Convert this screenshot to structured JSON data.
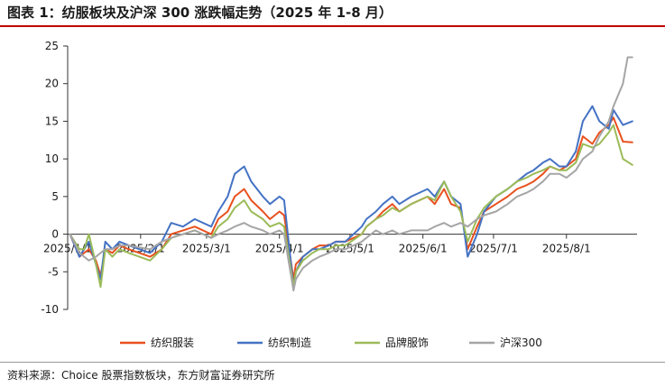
{
  "header": {
    "title": "图表 1：纺服板块及沪深 300 涨跌幅走势（2025 年 1-8 月）"
  },
  "footer": {
    "source": "资料来源：Choice 股票指数板块，东方财富证券研究所"
  },
  "colors": {
    "accent": "#c00000"
  },
  "chart_data": {
    "type": "line",
    "title": "",
    "xlabel": "",
    "ylabel": "",
    "ylim": [
      -10,
      25
    ],
    "yticks": [
      -10,
      -5,
      0,
      5,
      10,
      15,
      20,
      25
    ],
    "grid": false,
    "legend": "bottom",
    "date_axis": {
      "start": "2025-01-01",
      "end": "2025-08-31"
    },
    "xticks": [
      {
        "date": "2025-01-01",
        "label": "2025/1/1"
      },
      {
        "date": "2025-02-01",
        "label": "2025/2/1"
      },
      {
        "date": "2025-03-01",
        "label": "2025/3/1"
      },
      {
        "date": "2025-04-01",
        "label": "2025/4/1"
      },
      {
        "date": "2025-05-01",
        "label": "2025/5/1"
      },
      {
        "date": "2025-06-01",
        "label": "2025/6/1"
      },
      {
        "date": "2025-07-01",
        "label": "2025/7/1"
      },
      {
        "date": "2025-08-01",
        "label": "2025/8/1"
      }
    ],
    "series": [
      {
        "name": "纺织服装",
        "color": "#e8501e",
        "points": [
          [
            "2025-01-02",
            0
          ],
          [
            "2025-01-06",
            -3
          ],
          [
            "2025-01-08",
            -2.5
          ],
          [
            "2025-01-10",
            -2
          ],
          [
            "2025-01-13",
            -3.5
          ],
          [
            "2025-01-15",
            -5.5
          ],
          [
            "2025-01-17",
            -2
          ],
          [
            "2025-01-20",
            -2.5
          ],
          [
            "2025-01-23",
            -1.5
          ],
          [
            "2025-01-27",
            -2
          ],
          [
            "2025-02-05",
            -3
          ],
          [
            "2025-02-10",
            -2
          ],
          [
            "2025-02-14",
            0
          ],
          [
            "2025-02-19",
            0.5
          ],
          [
            "2025-02-24",
            1
          ],
          [
            "2025-03-03",
            0
          ],
          [
            "2025-03-06",
            2
          ],
          [
            "2025-03-10",
            3
          ],
          [
            "2025-03-13",
            5
          ],
          [
            "2025-03-17",
            6
          ],
          [
            "2025-03-20",
            4.5
          ],
          [
            "2025-03-25",
            3
          ],
          [
            "2025-03-28",
            2
          ],
          [
            "2025-04-01",
            3
          ],
          [
            "2025-04-03",
            2.5
          ],
          [
            "2025-04-07",
            -6
          ],
          [
            "2025-04-08",
            -4
          ],
          [
            "2025-04-11",
            -3
          ],
          [
            "2025-04-15",
            -2
          ],
          [
            "2025-04-18",
            -1.5
          ],
          [
            "2025-04-22",
            -1.5
          ],
          [
            "2025-04-25",
            -1
          ],
          [
            "2025-04-29",
            -1
          ],
          [
            "2025-05-06",
            0
          ],
          [
            "2025-05-08",
            1
          ],
          [
            "2025-05-12",
            2
          ],
          [
            "2025-05-15",
            3
          ],
          [
            "2025-05-19",
            4
          ],
          [
            "2025-05-22",
            3
          ],
          [
            "2025-05-27",
            4
          ],
          [
            "2025-06-03",
            5
          ],
          [
            "2025-06-06",
            4
          ],
          [
            "2025-06-10",
            6
          ],
          [
            "2025-06-13",
            4
          ],
          [
            "2025-06-17",
            3.5
          ],
          [
            "2025-06-20",
            -2
          ],
          [
            "2025-06-24",
            1
          ],
          [
            "2025-06-27",
            3
          ],
          [
            "2025-07-02",
            4
          ],
          [
            "2025-07-07",
            5
          ],
          [
            "2025-07-11",
            6
          ],
          [
            "2025-07-15",
            6.5
          ],
          [
            "2025-07-18",
            7
          ],
          [
            "2025-07-22",
            8
          ],
          [
            "2025-07-25",
            9
          ],
          [
            "2025-07-29",
            8.5
          ],
          [
            "2025-08-01",
            9
          ],
          [
            "2025-08-05",
            10
          ],
          [
            "2025-08-08",
            13
          ],
          [
            "2025-08-12",
            12
          ],
          [
            "2025-08-15",
            13.5
          ],
          [
            "2025-08-19",
            14.5
          ],
          [
            "2025-08-21",
            15.5
          ],
          [
            "2025-08-25",
            12.3
          ],
          [
            "2025-08-29",
            12.2
          ]
        ]
      },
      {
        "name": "纺织制造",
        "color": "#4472c4",
        "points": [
          [
            "2025-01-02",
            0
          ],
          [
            "2025-01-06",
            -3
          ],
          [
            "2025-01-08",
            -2
          ],
          [
            "2025-01-10",
            -1
          ],
          [
            "2025-01-13",
            -4
          ],
          [
            "2025-01-15",
            -6
          ],
          [
            "2025-01-17",
            -1
          ],
          [
            "2025-01-20",
            -2
          ],
          [
            "2025-01-23",
            -1
          ],
          [
            "2025-01-27",
            -1.5
          ],
          [
            "2025-02-05",
            -2.5
          ],
          [
            "2025-02-10",
            -1
          ],
          [
            "2025-02-14",
            1.5
          ],
          [
            "2025-02-19",
            1
          ],
          [
            "2025-02-24",
            2
          ],
          [
            "2025-03-03",
            1
          ],
          [
            "2025-03-06",
            3
          ],
          [
            "2025-03-10",
            5
          ],
          [
            "2025-03-13",
            8
          ],
          [
            "2025-03-17",
            9
          ],
          [
            "2025-03-20",
            7
          ],
          [
            "2025-03-25",
            5
          ],
          [
            "2025-03-28",
            4
          ],
          [
            "2025-04-01",
            5
          ],
          [
            "2025-04-03",
            4.5
          ],
          [
            "2025-04-07",
            -7
          ],
          [
            "2025-04-08",
            -5
          ],
          [
            "2025-04-11",
            -3
          ],
          [
            "2025-04-15",
            -2
          ],
          [
            "2025-04-18",
            -2
          ],
          [
            "2025-04-22",
            -1.5
          ],
          [
            "2025-04-25",
            -1
          ],
          [
            "2025-04-29",
            -1
          ],
          [
            "2025-05-06",
            1
          ],
          [
            "2025-05-08",
            2
          ],
          [
            "2025-05-12",
            3
          ],
          [
            "2025-05-15",
            4
          ],
          [
            "2025-05-19",
            5
          ],
          [
            "2025-05-22",
            4
          ],
          [
            "2025-05-27",
            5
          ],
          [
            "2025-06-03",
            6
          ],
          [
            "2025-06-06",
            5
          ],
          [
            "2025-06-10",
            7
          ],
          [
            "2025-06-13",
            5
          ],
          [
            "2025-06-17",
            4
          ],
          [
            "2025-06-20",
            -3
          ],
          [
            "2025-06-24",
            0
          ],
          [
            "2025-06-27",
            3
          ],
          [
            "2025-07-02",
            5
          ],
          [
            "2025-07-07",
            6
          ],
          [
            "2025-07-11",
            7
          ],
          [
            "2025-07-15",
            8
          ],
          [
            "2025-07-18",
            8.5
          ],
          [
            "2025-07-22",
            9.5
          ],
          [
            "2025-07-25",
            10
          ],
          [
            "2025-07-29",
            9
          ],
          [
            "2025-08-01",
            9
          ],
          [
            "2025-08-05",
            11
          ],
          [
            "2025-08-08",
            15
          ],
          [
            "2025-08-12",
            17
          ],
          [
            "2025-08-15",
            15
          ],
          [
            "2025-08-19",
            14
          ],
          [
            "2025-08-21",
            16.5
          ],
          [
            "2025-08-25",
            14.5
          ],
          [
            "2025-08-29",
            15
          ]
        ]
      },
      {
        "name": "品牌服饰",
        "color": "#9bbb59",
        "points": [
          [
            "2025-01-02",
            0
          ],
          [
            "2025-01-06",
            -2
          ],
          [
            "2025-01-08",
            -2
          ],
          [
            "2025-01-10",
            0
          ],
          [
            "2025-01-13",
            -4
          ],
          [
            "2025-01-15",
            -7
          ],
          [
            "2025-01-17",
            -2
          ],
          [
            "2025-01-20",
            -3
          ],
          [
            "2025-01-23",
            -2
          ],
          [
            "2025-01-27",
            -2.5
          ],
          [
            "2025-02-05",
            -3.5
          ],
          [
            "2025-02-10",
            -2
          ],
          [
            "2025-02-14",
            -0.5
          ],
          [
            "2025-02-19",
            0
          ],
          [
            "2025-02-24",
            0.5
          ],
          [
            "2025-03-03",
            -0.5
          ],
          [
            "2025-03-06",
            1
          ],
          [
            "2025-03-10",
            2
          ],
          [
            "2025-03-13",
            3.5
          ],
          [
            "2025-03-17",
            4.5
          ],
          [
            "2025-03-20",
            3
          ],
          [
            "2025-03-25",
            2
          ],
          [
            "2025-03-28",
            1
          ],
          [
            "2025-04-01",
            1.5
          ],
          [
            "2025-04-03",
            1
          ],
          [
            "2025-04-07",
            -7
          ],
          [
            "2025-04-08",
            -5
          ],
          [
            "2025-04-11",
            -3.5
          ],
          [
            "2025-04-15",
            -2.5
          ],
          [
            "2025-04-18",
            -2
          ],
          [
            "2025-04-22",
            -2
          ],
          [
            "2025-04-25",
            -1.5
          ],
          [
            "2025-04-29",
            -1.5
          ],
          [
            "2025-05-06",
            0
          ],
          [
            "2025-05-08",
            1
          ],
          [
            "2025-05-12",
            2
          ],
          [
            "2025-05-15",
            2.5
          ],
          [
            "2025-05-19",
            3.5
          ],
          [
            "2025-05-22",
            3
          ],
          [
            "2025-05-27",
            4
          ],
          [
            "2025-06-03",
            5
          ],
          [
            "2025-06-06",
            4.5
          ],
          [
            "2025-06-10",
            7
          ],
          [
            "2025-06-13",
            5
          ],
          [
            "2025-06-17",
            3
          ],
          [
            "2025-06-20",
            -1
          ],
          [
            "2025-06-24",
            2
          ],
          [
            "2025-06-27",
            3.5
          ],
          [
            "2025-07-02",
            5
          ],
          [
            "2025-07-07",
            6
          ],
          [
            "2025-07-11",
            7
          ],
          [
            "2025-07-15",
            7.5
          ],
          [
            "2025-07-18",
            8
          ],
          [
            "2025-07-22",
            8.5
          ],
          [
            "2025-07-25",
            9
          ],
          [
            "2025-07-29",
            8.5
          ],
          [
            "2025-08-01",
            8.5
          ],
          [
            "2025-08-05",
            9.5
          ],
          [
            "2025-08-08",
            12
          ],
          [
            "2025-08-12",
            11.5
          ],
          [
            "2025-08-15",
            12
          ],
          [
            "2025-08-19",
            13.5
          ],
          [
            "2025-08-21",
            14.5
          ],
          [
            "2025-08-25",
            10
          ],
          [
            "2025-08-29",
            9.2
          ]
        ]
      },
      {
        "name": "沪深300",
        "color": "#a5a5a5",
        "points": [
          [
            "2025-01-02",
            0
          ],
          [
            "2025-01-06",
            -2.5
          ],
          [
            "2025-01-08",
            -3
          ],
          [
            "2025-01-10",
            -3.5
          ],
          [
            "2025-01-13",
            -3
          ],
          [
            "2025-01-15",
            -2.5
          ],
          [
            "2025-01-17",
            -2
          ],
          [
            "2025-01-20",
            -2
          ],
          [
            "2025-01-23",
            -1.5
          ],
          [
            "2025-01-27",
            -1.5
          ],
          [
            "2025-02-05",
            -2
          ],
          [
            "2025-02-10",
            -1
          ],
          [
            "2025-02-14",
            -0.5
          ],
          [
            "2025-02-19",
            0
          ],
          [
            "2025-02-24",
            0.5
          ],
          [
            "2025-03-03",
            -0.5
          ],
          [
            "2025-03-06",
            0
          ],
          [
            "2025-03-10",
            0.5
          ],
          [
            "2025-03-13",
            1
          ],
          [
            "2025-03-17",
            1.5
          ],
          [
            "2025-03-20",
            1
          ],
          [
            "2025-03-25",
            0.5
          ],
          [
            "2025-03-28",
            0
          ],
          [
            "2025-04-01",
            0.5
          ],
          [
            "2025-04-03",
            0
          ],
          [
            "2025-04-07",
            -7.5
          ],
          [
            "2025-04-08",
            -6
          ],
          [
            "2025-04-11",
            -4.5
          ],
          [
            "2025-04-15",
            -3.5
          ],
          [
            "2025-04-18",
            -3
          ],
          [
            "2025-04-22",
            -2.5
          ],
          [
            "2025-04-25",
            -2
          ],
          [
            "2025-04-29",
            -2
          ],
          [
            "2025-05-06",
            -1
          ],
          [
            "2025-05-08",
            -0.5
          ],
          [
            "2025-05-12",
            0.5
          ],
          [
            "2025-05-15",
            0
          ],
          [
            "2025-05-19",
            0.5
          ],
          [
            "2025-05-22",
            0
          ],
          [
            "2025-05-27",
            0.5
          ],
          [
            "2025-06-03",
            0.5
          ],
          [
            "2025-06-06",
            1
          ],
          [
            "2025-06-10",
            1.5
          ],
          [
            "2025-06-13",
            1
          ],
          [
            "2025-06-17",
            1.5
          ],
          [
            "2025-06-20",
            1
          ],
          [
            "2025-06-24",
            2
          ],
          [
            "2025-06-27",
            2.5
          ],
          [
            "2025-07-02",
            3
          ],
          [
            "2025-07-07",
            4
          ],
          [
            "2025-07-11",
            5
          ],
          [
            "2025-07-15",
            5.5
          ],
          [
            "2025-07-18",
            6
          ],
          [
            "2025-07-22",
            7
          ],
          [
            "2025-07-25",
            8
          ],
          [
            "2025-07-29",
            8
          ],
          [
            "2025-08-01",
            7.5
          ],
          [
            "2025-08-05",
            8.5
          ],
          [
            "2025-08-08",
            10
          ],
          [
            "2025-08-12",
            11
          ],
          [
            "2025-08-15",
            13
          ],
          [
            "2025-08-19",
            15
          ],
          [
            "2025-08-21",
            17
          ],
          [
            "2025-08-25",
            20
          ],
          [
            "2025-08-27",
            23.5
          ],
          [
            "2025-08-29",
            23.5
          ]
        ]
      }
    ]
  }
}
